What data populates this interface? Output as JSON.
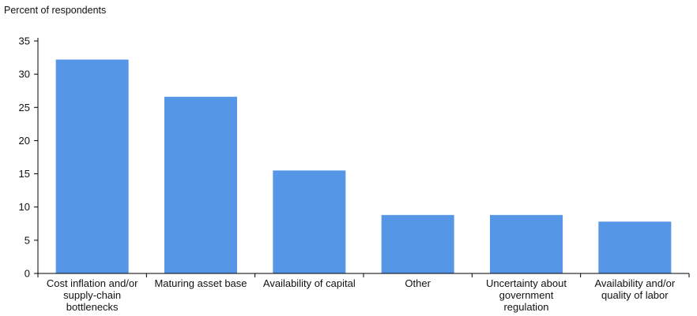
{
  "chart_data": {
    "type": "bar",
    "ylabel": "Percent of respondents",
    "xlabel": "",
    "title": "",
    "ylim": [
      0,
      35
    ],
    "yticks": [
      0,
      5,
      10,
      15,
      20,
      25,
      30,
      35
    ],
    "grid": false,
    "categories": [
      [
        "Cost inflation and/or",
        "supply-chain",
        "bottlenecks"
      ],
      [
        "Maturing asset base"
      ],
      [
        "Availability of capital"
      ],
      [
        "Other"
      ],
      [
        "Uncertainty about",
        "government",
        "regulation"
      ],
      [
        "Availability and/or",
        "quality of labor"
      ]
    ],
    "values": [
      32.2,
      26.6,
      15.5,
      8.8,
      8.8,
      7.8
    ],
    "bar_color": "#5596E6",
    "axis_color": "#000000"
  }
}
